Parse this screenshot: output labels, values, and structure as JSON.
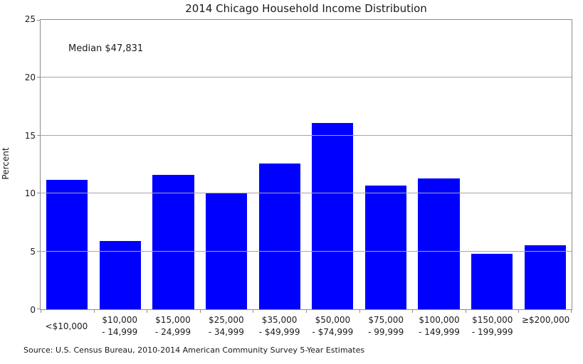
{
  "source": "Source: U.S. Census Bureau, 2010-2014 American Community Survey 5-Year Estimates",
  "colors": {
    "bar": "#0000ff",
    "grid": "#a6a6a6",
    "frame": "#8c8c8c",
    "text": "#1a1a1a",
    "background": "#ffffff"
  },
  "chart_data": {
    "type": "bar",
    "title": "2014 Chicago Household Income Distribution",
    "annotation": "Median $47,831",
    "xlabel": "",
    "ylabel": "Percent",
    "ylim": [
      0,
      25
    ],
    "yticks": [
      0,
      5,
      10,
      15,
      20,
      25
    ],
    "grid": "horizontal",
    "legend": "none",
    "categories": [
      "<$10,000",
      "$10,000\n- 14,999",
      "$15,000\n- 24,999",
      "$25,000\n- 34,999",
      "$35,000\n- $49,999",
      "$50,000\n- $74,999",
      "$75,000\n- 99,999",
      "$100,000\n- 149,999",
      "$150,000\n- 199,999",
      "≥$200,000"
    ],
    "values": [
      11.2,
      5.9,
      11.6,
      10.1,
      12.6,
      16.1,
      10.7,
      11.3,
      4.8,
      5.5
    ]
  }
}
